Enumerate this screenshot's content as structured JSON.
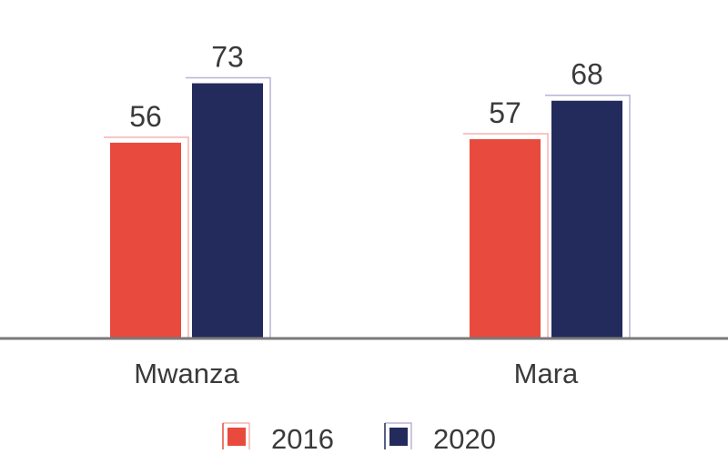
{
  "chart_data": {
    "type": "bar",
    "categories": [
      "Mwanza",
      "Mara"
    ],
    "series": [
      {
        "name": "2016",
        "values": [
          56,
          57
        ],
        "color": "#e84a3d",
        "accent": "#f5b3ad"
      },
      {
        "name": "2020",
        "values": [
          73,
          68
        ],
        "color": "#232a5c",
        "accent": "#b8b3d6"
      }
    ],
    "ylim": [
      0,
      76
    ],
    "baseline_color": "#7a7a7a",
    "grid": false,
    "y_axis_visible": false,
    "data_labels": true,
    "legend_position": "bottom"
  }
}
